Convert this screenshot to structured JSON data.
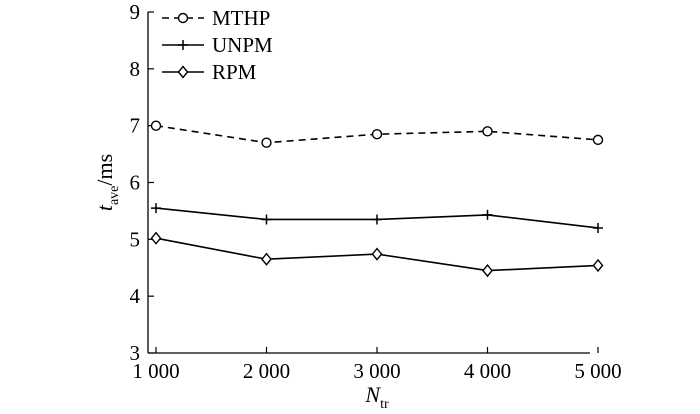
{
  "chart_data": {
    "type": "line",
    "title": "",
    "x": [
      1000,
      2000,
      3000,
      4000,
      5000
    ],
    "x_tick_labels": [
      "1 000",
      "2 000",
      "3 000",
      "4 000",
      "5 000"
    ],
    "y_ticks": [
      3,
      4,
      5,
      6,
      7,
      8,
      9
    ],
    "ylim": [
      3,
      9
    ],
    "xlim": [
      1000,
      5000
    ],
    "xlabel": {
      "main": "N",
      "sub": "tr"
    },
    "ylabel": {
      "main": "t",
      "sub": "ave",
      "suffix": "/ms"
    },
    "grid": false,
    "legend_position": "top-left",
    "series": [
      {
        "name": "MTHP",
        "line_style": "dashed",
        "marker": "circle",
        "color": "#000000",
        "values": [
          7.0,
          6.7,
          6.85,
          6.9,
          6.75
        ]
      },
      {
        "name": "UNPM",
        "line_style": "solid",
        "marker": "plus",
        "color": "#000000",
        "values": [
          5.55,
          5.35,
          5.35,
          5.43,
          5.2
        ]
      },
      {
        "name": "RPM",
        "line_style": "solid",
        "marker": "diamond",
        "color": "#000000",
        "values": [
          5.02,
          4.65,
          4.74,
          4.45,
          4.54
        ]
      }
    ]
  }
}
